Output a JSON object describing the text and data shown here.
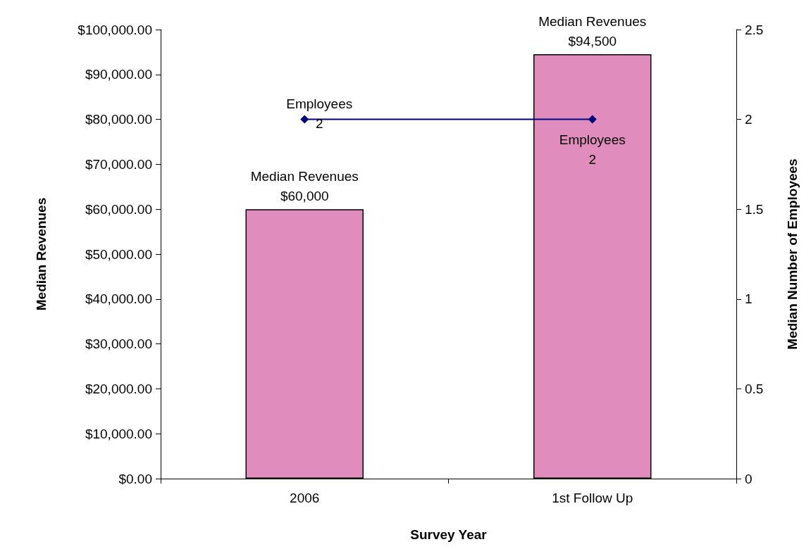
{
  "chart_data": {
    "type": "bar",
    "xlabel": "Survey Year",
    "ylabel": "Median Revenues",
    "y2label": "Median Number of Employees",
    "categories": [
      "2006",
      "1st Follow Up"
    ],
    "series": [
      {
        "name": "Median Revenues",
        "color": "#e08cbc",
        "values": [
          60000,
          94500
        ],
        "value_labels": [
          "$60,000",
          "$94,500"
        ]
      },
      {
        "name": "Employees",
        "type": "line",
        "axis": "y2",
        "color": "#000080",
        "values": [
          2,
          2
        ],
        "value_labels": [
          "2",
          "2"
        ],
        "marker": "diamond"
      }
    ],
    "ylim": [
      0,
      100000
    ],
    "yticks": [
      {
        "value": 0,
        "label": "$0.00"
      },
      {
        "value": 10000,
        "label": "$10,000.00"
      },
      {
        "value": 20000,
        "label": "$20,000.00"
      },
      {
        "value": 30000,
        "label": "$30,000.00"
      },
      {
        "value": 40000,
        "label": "$40,000.00"
      },
      {
        "value": 50000,
        "label": "$50,000.00"
      },
      {
        "value": 60000,
        "label": "$60,000.00"
      },
      {
        "value": 70000,
        "label": "$70,000.00"
      },
      {
        "value": 80000,
        "label": "$80,000.00"
      },
      {
        "value": 90000,
        "label": "$90,000.00"
      },
      {
        "value": 100000,
        "label": "$100,000.00"
      }
    ],
    "y2lim": [
      0,
      2.5
    ],
    "y2ticks": [
      0,
      0.5,
      1,
      1.5,
      2,
      2.5
    ],
    "grid": false,
    "legend": false
  }
}
